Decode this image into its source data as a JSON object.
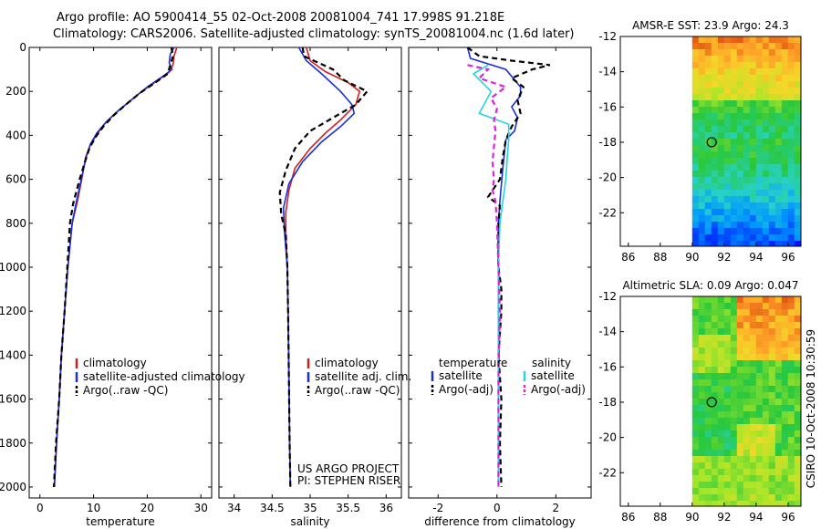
{
  "title_line1": "Argo profile: AO 5900414_55 02-Oct-2008 20081004_741 17.998S 91.218E",
  "title_line2": "Climatology: CARS2006. Satellite-adjusted climatology: synTS_20081004.nc (1.6d later)",
  "side_label": "CSIRO 10-Oct-2008 10:30:59",
  "colors": {
    "climatology": "#d0201e",
    "satellite": "#1a2fd6",
    "argo": "#000000",
    "sat_salinity": "#22d6e0",
    "argo_adj_salinity": "#dd22dd"
  },
  "chart_data": [
    {
      "type": "line",
      "id": "temperature",
      "xlabel": "temperature",
      "xlim": [
        -2,
        32
      ],
      "ylim": [
        2050,
        0
      ],
      "xticks": [
        0,
        10,
        20,
        30
      ],
      "yticks": [
        0,
        200,
        400,
        600,
        800,
        1000,
        1200,
        1400,
        1600,
        1800,
        2000
      ],
      "legend": [
        "climatology",
        "satellite-adjusted climatology",
        "Argo(..raw -QC)"
      ],
      "series": [
        {
          "name": "climatology",
          "color": "#d0201e",
          "dash": "",
          "points": [
            [
              25.5,
              0
            ],
            [
              25.0,
              40
            ],
            [
              24.8,
              80
            ],
            [
              24.2,
              110
            ],
            [
              22,
              150
            ],
            [
              19,
              200
            ],
            [
              16.5,
              250
            ],
            [
              14,
              300
            ],
            [
              12,
              350
            ],
            [
              10.5,
              400
            ],
            [
              9.3,
              450
            ],
            [
              8.5,
              500
            ],
            [
              7.8,
              600
            ],
            [
              7,
              700
            ],
            [
              6,
              800
            ],
            [
              5.2,
              1000
            ],
            [
              4.6,
              1200
            ],
            [
              4,
              1400
            ],
            [
              3.6,
              1600
            ],
            [
              3.1,
              1800
            ],
            [
              2.7,
              2000
            ]
          ]
        },
        {
          "name": "satellite",
          "color": "#1a2fd6",
          "dash": "",
          "points": [
            [
              25.0,
              0
            ],
            [
              24.3,
              30
            ],
            [
              24.1,
              70
            ],
            [
              24.6,
              100
            ],
            [
              23.0,
              130
            ],
            [
              20,
              180
            ],
            [
              17,
              240
            ],
            [
              14.5,
              290
            ],
            [
              12.3,
              340
            ],
            [
              10.6,
              390
            ],
            [
              9.4,
              440
            ],
            [
              8.6,
              500
            ],
            [
              7.7,
              600
            ],
            [
              6.8,
              700
            ],
            [
              6,
              800
            ],
            [
              5.2,
              1000
            ],
            [
              4.6,
              1200
            ],
            [
              4,
              1400
            ],
            [
              3.6,
              1600
            ],
            [
              3.1,
              1800
            ],
            [
              2.7,
              2000
            ]
          ]
        },
        {
          "name": "argo",
          "color": "#000000",
          "dash": "6,4",
          "points": [
            [
              24.5,
              0
            ],
            [
              24.8,
              40
            ],
            [
              24.3,
              80
            ],
            [
              23.8,
              120
            ],
            [
              21.5,
              160
            ],
            [
              18.5,
              210
            ],
            [
              16,
              260
            ],
            [
              13.7,
              310
            ],
            [
              11.8,
              360
            ],
            [
              10.3,
              410
            ],
            [
              9.2,
              460
            ],
            [
              8.4,
              520
            ],
            [
              7.4,
              600
            ],
            [
              6.2,
              710
            ],
            [
              5.6,
              800
            ],
            [
              5.1,
              1000
            ],
            [
              4.6,
              1200
            ],
            [
              4,
              1400
            ],
            [
              3.6,
              1600
            ],
            [
              3,
              1800
            ],
            [
              2.6,
              2000
            ]
          ]
        }
      ]
    },
    {
      "type": "line",
      "id": "salinity",
      "xlabel": "salinity",
      "xlim": [
        33.8,
        36.2
      ],
      "ylim": [
        2050,
        0
      ],
      "xticks": [
        34,
        34.5,
        35,
        35.5,
        36
      ],
      "legend": [
        "climatology",
        "satellite adj. clim.",
        "Argo(..raw -QC)"
      ],
      "annotations": [
        "US ARGO PROJECT",
        "PI: STEPHEN RISER"
      ],
      "series": [
        {
          "name": "climatology",
          "color": "#d0201e",
          "dash": "",
          "points": [
            [
              34.95,
              0
            ],
            [
              35.0,
              60
            ],
            [
              35.2,
              110
            ],
            [
              35.5,
              160
            ],
            [
              35.65,
              200
            ],
            [
              35.6,
              260
            ],
            [
              35.4,
              330
            ],
            [
              35.2,
              390
            ],
            [
              35.0,
              460
            ],
            [
              34.8,
              550
            ],
            [
              34.72,
              650
            ],
            [
              34.68,
              750
            ],
            [
              34.68,
              850
            ],
            [
              34.7,
              1000
            ],
            [
              34.71,
              1200
            ],
            [
              34.72,
              1500
            ],
            [
              34.73,
              1800
            ],
            [
              34.74,
              2000
            ]
          ]
        },
        {
          "name": "satellite",
          "color": "#1a2fd6",
          "dash": "",
          "points": [
            [
              34.85,
              0
            ],
            [
              34.95,
              60
            ],
            [
              35.15,
              120
            ],
            [
              35.4,
              200
            ],
            [
              35.55,
              260
            ],
            [
              35.58,
              300
            ],
            [
              35.4,
              360
            ],
            [
              35.15,
              430
            ],
            [
              34.9,
              520
            ],
            [
              34.72,
              620
            ],
            [
              34.65,
              730
            ],
            [
              34.66,
              830
            ],
            [
              34.7,
              1000
            ],
            [
              34.71,
              1200
            ],
            [
              34.72,
              1500
            ],
            [
              34.73,
              1800
            ],
            [
              34.74,
              2000
            ]
          ]
        },
        {
          "name": "argo",
          "color": "#000000",
          "dash": "6,4",
          "points": [
            [
              34.9,
              0
            ],
            [
              34.92,
              40
            ],
            [
              35.3,
              100
            ],
            [
              35.45,
              150
            ],
            [
              35.75,
              200
            ],
            [
              35.6,
              260
            ],
            [
              35.3,
              320
            ],
            [
              35.0,
              380
            ],
            [
              34.8,
              460
            ],
            [
              34.68,
              560
            ],
            [
              34.6,
              660
            ],
            [
              34.62,
              760
            ],
            [
              34.68,
              850
            ],
            [
              34.7,
              1000
            ],
            [
              34.71,
              1200
            ],
            [
              34.72,
              1500
            ],
            [
              34.73,
              1800
            ],
            [
              34.74,
              2000
            ]
          ]
        }
      ]
    },
    {
      "type": "line",
      "id": "difference",
      "xlabel": "difference from climatology",
      "xlim": [
        -3,
        3.2
      ],
      "ylim": [
        2050,
        0
      ],
      "xticks": [
        -2,
        0,
        2
      ],
      "legend_titles": [
        "temperature",
        "salinity"
      ],
      "legend": [
        "satellite",
        "Argo(-adj)",
        "satellite",
        "Argo(-adj)"
      ],
      "series": [
        {
          "name": "temp satellite",
          "color": "#1a2fd6",
          "dash": "",
          "points": [
            [
              -1.0,
              0
            ],
            [
              -0.9,
              50
            ],
            [
              0.3,
              100
            ],
            [
              0.8,
              180
            ],
            [
              0.8,
              220
            ],
            [
              0.5,
              270
            ],
            [
              0.7,
              320
            ],
            [
              0.6,
              380
            ],
            [
              0.3,
              420
            ],
            [
              0.2,
              550
            ],
            [
              0.1,
              700
            ],
            [
              0.05,
              800
            ],
            [
              0.05,
              1000
            ],
            [
              0.05,
              1500
            ],
            [
              0.05,
              2000
            ]
          ]
        },
        {
          "name": "temp argo",
          "color": "#000000",
          "dash": "6,4",
          "points": [
            [
              -1.0,
              0
            ],
            [
              -0.6,
              40
            ],
            [
              0.5,
              60
            ],
            [
              1.8,
              80
            ],
            [
              1.2,
              100
            ],
            [
              0.5,
              140
            ],
            [
              0.9,
              180
            ],
            [
              0.7,
              240
            ],
            [
              0.8,
              300
            ],
            [
              0.5,
              360
            ],
            [
              0.3,
              420
            ],
            [
              0.2,
              500
            ],
            [
              0.1,
              600
            ],
            [
              -0.3,
              680
            ],
            [
              0.1,
              720
            ],
            [
              0.05,
              800
            ],
            [
              0.05,
              1000
            ],
            [
              0.15,
              1100
            ],
            [
              0.15,
              1200
            ],
            [
              0.05,
              1400
            ],
            [
              0.15,
              1600
            ],
            [
              0.1,
              1800
            ],
            [
              0.15,
              2000
            ]
          ]
        },
        {
          "name": "sal satellite",
          "color": "#22d6e0",
          "dash": "",
          "points": [
            [
              -0.3,
              80
            ],
            [
              -0.8,
              120
            ],
            [
              -0.2,
              200
            ],
            [
              -0.6,
              300
            ],
            [
              0.4,
              350
            ],
            [
              0.4,
              420
            ],
            [
              0.35,
              500
            ],
            [
              0.3,
              600
            ],
            [
              0.2,
              700
            ],
            [
              0.1,
              800
            ],
            [
              0.05,
              1000
            ],
            [
              0.05,
              1500
            ],
            [
              0.05,
              2000
            ]
          ]
        },
        {
          "name": "sal argo",
          "color": "#dd22dd",
          "dash": "6,4",
          "points": [
            [
              -1.0,
              80
            ],
            [
              -0.3,
              100
            ],
            [
              -0.6,
              140
            ],
            [
              0.3,
              180
            ],
            [
              -0.2,
              230
            ],
            [
              0.0,
              280
            ],
            [
              -0.1,
              330
            ],
            [
              -0.05,
              380
            ],
            [
              -0.1,
              450
            ],
            [
              -0.15,
              520
            ],
            [
              -0.1,
              600
            ],
            [
              -0.15,
              650
            ],
            [
              -0.05,
              700
            ],
            [
              0.0,
              800
            ],
            [
              0.05,
              1000
            ],
            [
              0.1,
              1200
            ],
            [
              0.05,
              1500
            ],
            [
              0.05,
              2000
            ]
          ]
        }
      ]
    },
    {
      "type": "heatmap",
      "id": "sst_map",
      "title": "AMSR-E SST: 23.9 Argo: 24.3",
      "xlim": [
        85.5,
        96.8
      ],
      "ylim": [
        -23.9,
        -12
      ],
      "xticks": [
        86,
        88,
        90,
        92,
        94,
        96
      ],
      "yticks": [
        -12,
        -14,
        -16,
        -18,
        -20,
        -22
      ],
      "data_lon_min": 90,
      "marker": [
        91.218,
        -17.998
      ]
    },
    {
      "type": "heatmap",
      "id": "sla_map",
      "title": "Altimetric SLA: 0.09 Argo: 0.047",
      "xlim": [
        85.5,
        96.8
      ],
      "ylim": [
        -23.9,
        -12
      ],
      "xticks": [
        86,
        88,
        90,
        92,
        94,
        96
      ],
      "yticks": [
        -12,
        -14,
        -16,
        -18,
        -20,
        -22
      ],
      "data_lon_min": 90,
      "marker": [
        91.218,
        -17.998
      ]
    }
  ]
}
